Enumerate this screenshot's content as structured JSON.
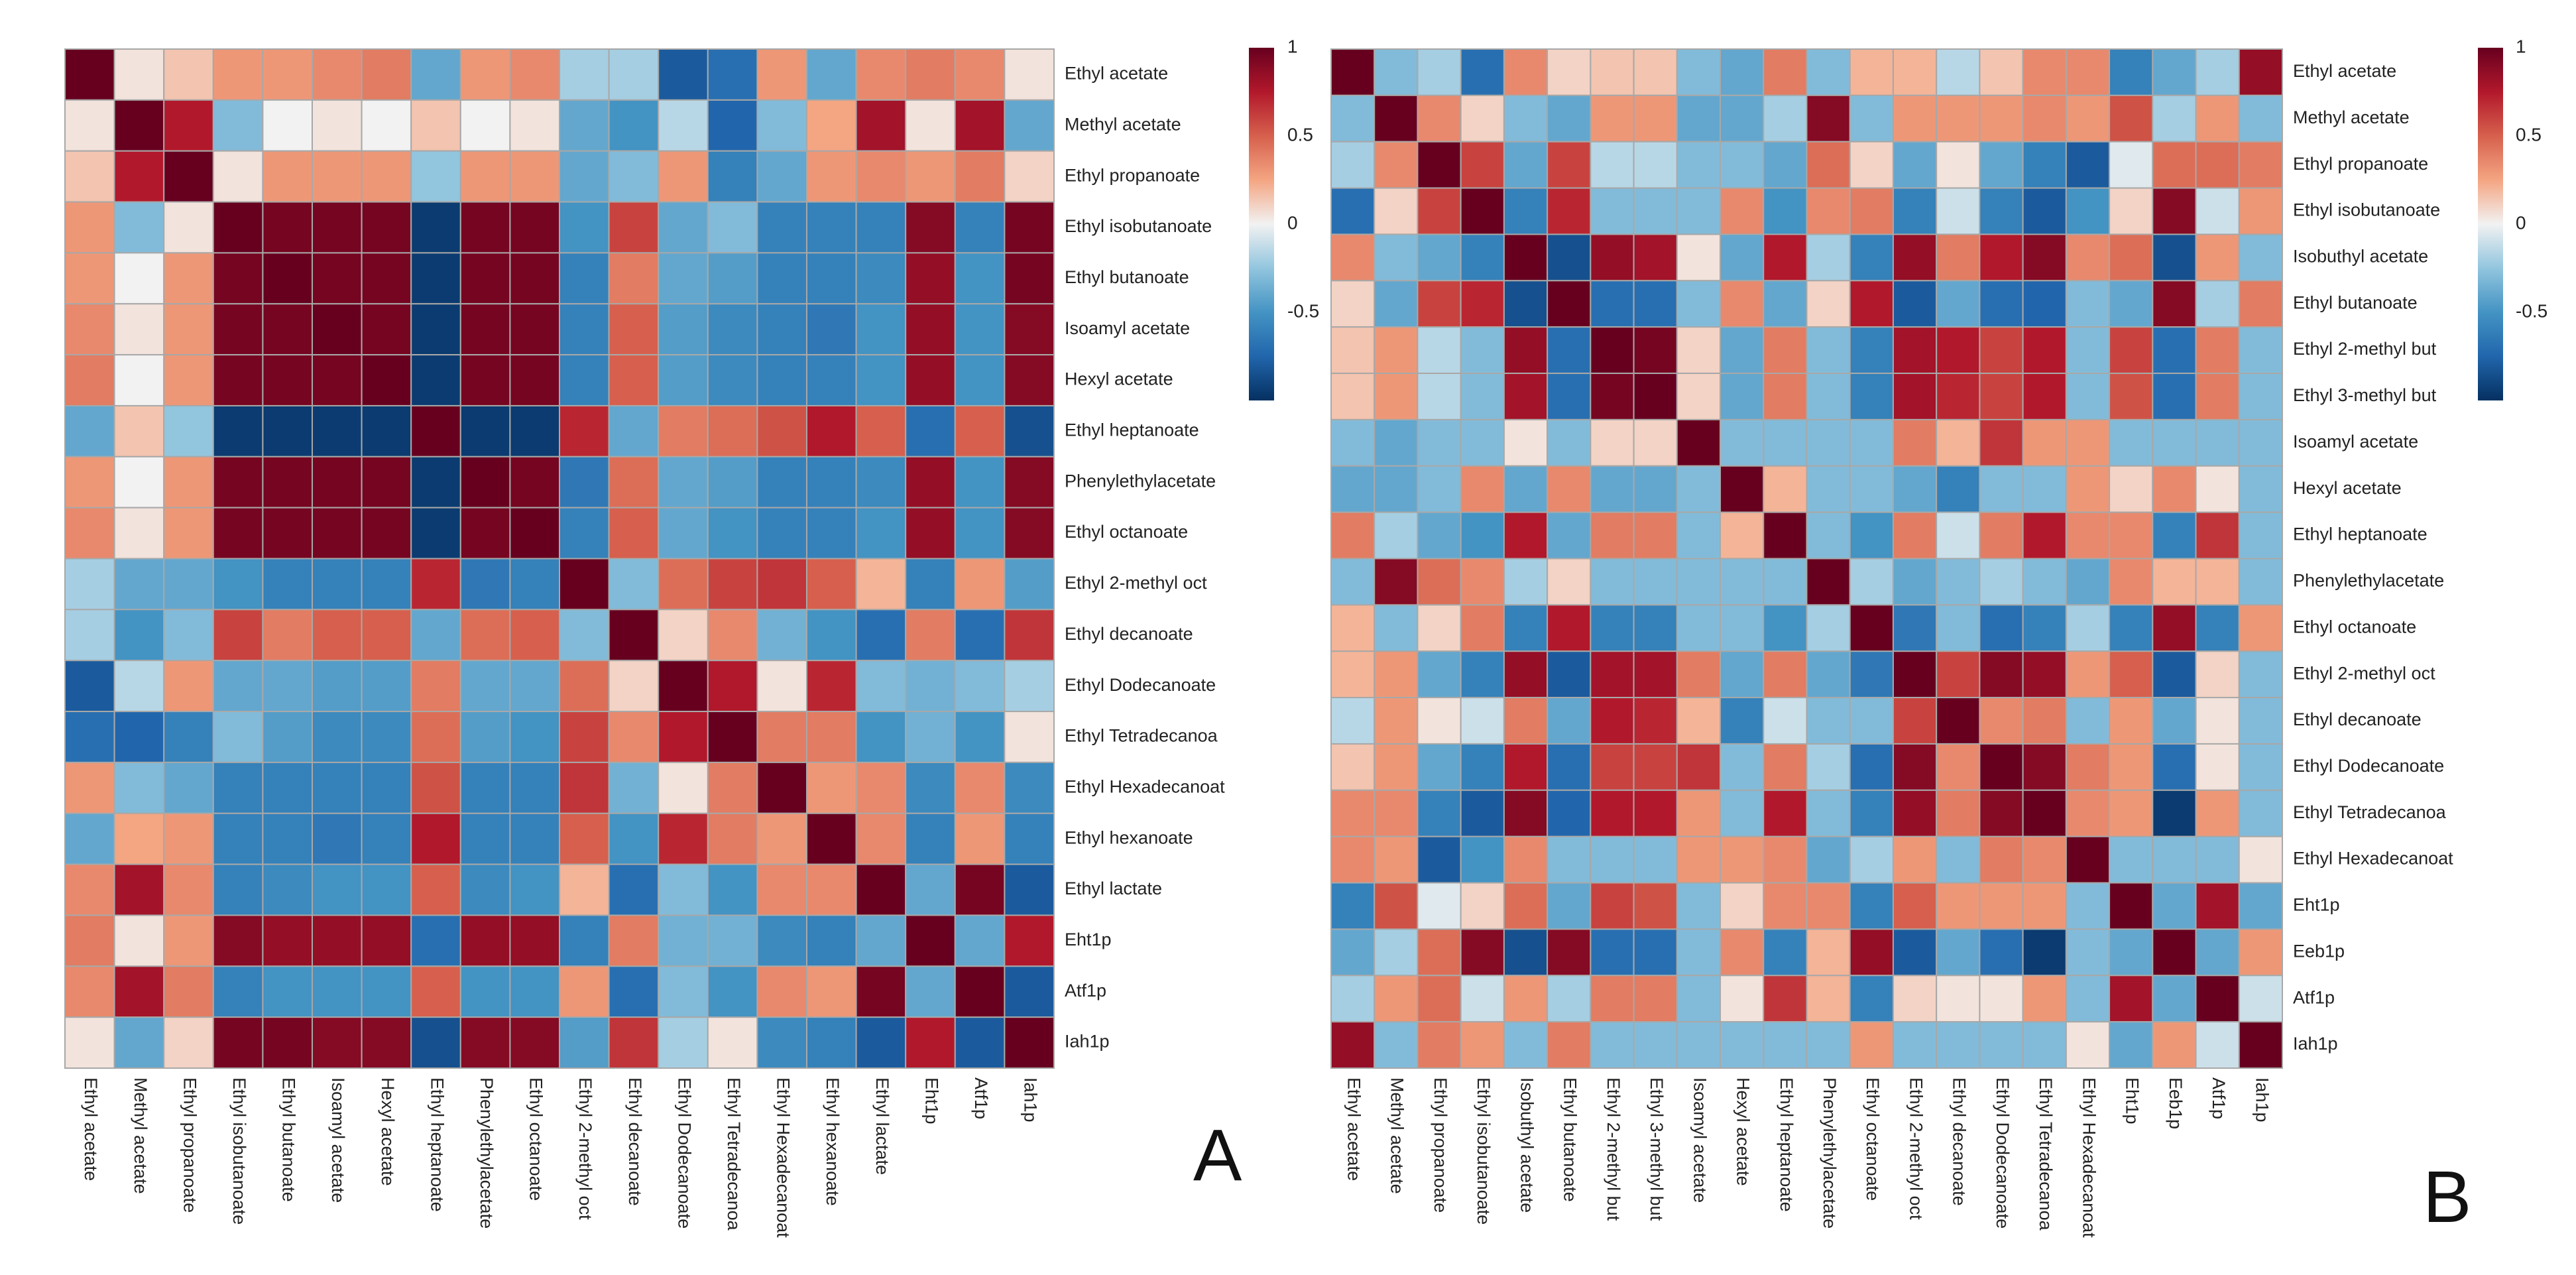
{
  "figure": {
    "panel_a_letter": "A",
    "panel_b_letter": "B"
  },
  "colors": {
    "neg": "#053061",
    "mid": "#f2f2f2",
    "pos": "#67001f",
    "grid": "#a8a8a8"
  },
  "chart_data": [
    {
      "type": "heatmap",
      "panel": "A",
      "title": "",
      "row_labels": [
        "Ethyl acetate",
        "Methyl acetate",
        "Ethyl propanoate",
        "Ethyl isobutanoate",
        "Ethyl butanoate",
        "Isoamyl acetate",
        "Hexyl acetate",
        "Ethyl heptanoate",
        "Phenylethylacetate",
        "Ethyl octanoate",
        "Ethyl 2-methyl oct",
        "Ethyl decanoate",
        "Ethyl Dodecanoate",
        "Ethyl Tetradecanoa",
        "Ethyl Hexadecanoat",
        "Ethyl hexanoate",
        "Ethyl lactate",
        "Eht1p",
        "Atf1p",
        "Iah1p"
      ],
      "col_labels": [
        "Ethyl acetate",
        "Methyl acetate",
        "Ethyl propanoate",
        "Ethyl isobutanoate",
        "Ethyl butanoate",
        "Isoamyl acetate",
        "Hexyl acetate",
        "Ethyl heptanoate",
        "Phenylethylacetate",
        "Ethyl octanoate",
        "Ethyl 2-methyl oct",
        "Ethyl decanoate",
        "Ethyl Dodecanoate",
        "Ethyl Tetradecanoa",
        "Ethyl Hexadecanoat",
        "Ethyl hexanoate",
        "Ethyl lactate",
        "Eht1p",
        "Atf1p",
        "Iah1p"
      ],
      "values": [
        [
          1.0,
          0.05,
          0.15,
          0.3,
          0.3,
          0.35,
          0.4,
          -0.4,
          0.3,
          0.35,
          -0.2,
          -0.2,
          -0.8,
          -0.7,
          0.3,
          -0.4,
          0.35,
          0.4,
          0.35,
          0.05
        ],
        [
          0.05,
          1.0,
          0.75,
          -0.3,
          0.0,
          0.05,
          0.0,
          0.15,
          0.0,
          0.05,
          -0.4,
          -0.5,
          -0.15,
          -0.75,
          -0.3,
          0.25,
          0.8,
          0.05,
          0.8,
          -0.4
        ],
        [
          0.15,
          0.75,
          1.0,
          0.05,
          0.3,
          0.3,
          0.3,
          -0.25,
          0.3,
          0.3,
          -0.4,
          -0.3,
          0.3,
          -0.6,
          -0.4,
          0.3,
          0.35,
          0.3,
          0.4,
          0.1
        ],
        [
          0.3,
          -0.3,
          0.05,
          1.0,
          0.95,
          0.95,
          0.95,
          -0.95,
          0.95,
          0.95,
          -0.5,
          0.6,
          -0.4,
          -0.3,
          -0.6,
          -0.6,
          -0.6,
          0.9,
          -0.6,
          0.95
        ],
        [
          0.3,
          0.0,
          0.3,
          0.95,
          1.0,
          0.95,
          0.95,
          -0.95,
          0.95,
          0.95,
          -0.6,
          0.4,
          -0.4,
          -0.45,
          -0.6,
          -0.6,
          -0.55,
          0.85,
          -0.5,
          0.95
        ],
        [
          0.35,
          0.05,
          0.3,
          0.95,
          0.95,
          1.0,
          0.95,
          -0.95,
          0.95,
          0.95,
          -0.6,
          0.5,
          -0.45,
          -0.55,
          -0.6,
          -0.65,
          -0.5,
          0.85,
          -0.5,
          0.9
        ],
        [
          0.4,
          0.0,
          0.3,
          0.95,
          0.95,
          0.95,
          1.0,
          -0.95,
          0.95,
          0.95,
          -0.6,
          0.5,
          -0.45,
          -0.55,
          -0.6,
          -0.6,
          -0.5,
          0.85,
          -0.5,
          0.9
        ],
        [
          -0.4,
          0.15,
          -0.25,
          -0.95,
          -0.95,
          -0.95,
          -0.95,
          1.0,
          -0.95,
          -0.95,
          0.7,
          -0.4,
          0.4,
          0.45,
          0.55,
          0.75,
          0.5,
          -0.7,
          0.5,
          -0.85
        ],
        [
          0.3,
          0.0,
          0.3,
          0.95,
          0.95,
          0.95,
          0.95,
          -0.95,
          1.0,
          0.95,
          -0.65,
          0.45,
          -0.4,
          -0.45,
          -0.6,
          -0.6,
          -0.55,
          0.85,
          -0.5,
          0.9
        ],
        [
          0.35,
          0.05,
          0.3,
          0.95,
          0.95,
          0.95,
          0.95,
          -0.95,
          0.95,
          1.0,
          -0.6,
          0.5,
          -0.4,
          -0.5,
          -0.6,
          -0.6,
          -0.5,
          0.85,
          -0.5,
          0.9
        ],
        [
          -0.2,
          -0.4,
          -0.4,
          -0.5,
          -0.6,
          -0.6,
          -0.6,
          0.7,
          -0.65,
          -0.6,
          1.0,
          -0.3,
          0.45,
          0.6,
          0.65,
          0.5,
          0.2,
          -0.6,
          0.3,
          -0.45
        ],
        [
          -0.2,
          -0.5,
          -0.3,
          0.6,
          0.4,
          0.5,
          0.5,
          -0.4,
          0.45,
          0.5,
          -0.3,
          1.0,
          0.1,
          0.35,
          -0.35,
          -0.5,
          -0.7,
          0.4,
          -0.7,
          0.65
        ],
        [
          -0.8,
          -0.15,
          0.3,
          -0.4,
          -0.4,
          -0.45,
          -0.45,
          0.4,
          -0.4,
          -0.4,
          0.45,
          0.1,
          1.0,
          0.75,
          0.05,
          0.7,
          -0.3,
          -0.35,
          -0.3,
          -0.2
        ],
        [
          -0.7,
          -0.75,
          -0.6,
          -0.3,
          -0.45,
          -0.55,
          -0.55,
          0.45,
          -0.45,
          -0.5,
          0.6,
          0.35,
          0.75,
          1.0,
          0.4,
          0.4,
          -0.5,
          -0.35,
          -0.5,
          0.05
        ],
        [
          0.3,
          -0.3,
          -0.4,
          -0.6,
          -0.6,
          -0.6,
          -0.6,
          0.55,
          -0.6,
          -0.6,
          0.65,
          -0.35,
          0.05,
          0.4,
          1.0,
          0.3,
          0.35,
          -0.55,
          0.35,
          -0.55
        ],
        [
          -0.4,
          0.25,
          0.3,
          -0.6,
          -0.6,
          -0.65,
          -0.6,
          0.75,
          -0.6,
          -0.6,
          0.5,
          -0.5,
          0.7,
          0.4,
          0.3,
          1.0,
          0.35,
          -0.6,
          0.3,
          -0.6
        ],
        [
          0.35,
          0.8,
          0.35,
          -0.6,
          -0.55,
          -0.5,
          -0.5,
          0.5,
          -0.55,
          -0.5,
          0.2,
          -0.7,
          -0.3,
          -0.5,
          0.35,
          0.35,
          1.0,
          -0.4,
          0.95,
          -0.8
        ],
        [
          0.4,
          0.05,
          0.3,
          0.9,
          0.85,
          0.85,
          0.85,
          -0.7,
          0.85,
          0.85,
          -0.6,
          0.4,
          -0.35,
          -0.35,
          -0.55,
          -0.6,
          -0.4,
          1.0,
          -0.4,
          0.75
        ],
        [
          0.35,
          0.8,
          0.4,
          -0.6,
          -0.5,
          -0.5,
          -0.5,
          0.5,
          -0.5,
          -0.5,
          0.3,
          -0.7,
          -0.3,
          -0.5,
          0.35,
          0.3,
          0.95,
          -0.4,
          1.0,
          -0.8
        ],
        [
          0.05,
          -0.4,
          0.1,
          0.95,
          0.95,
          0.9,
          0.9,
          -0.85,
          0.9,
          0.9,
          -0.45,
          0.65,
          -0.2,
          0.05,
          -0.55,
          -0.6,
          -0.8,
          0.75,
          -0.8,
          1.0
        ]
      ],
      "colorbar": {
        "range": [
          -1,
          1
        ],
        "ticks": [
          "1",
          "0.5",
          "0",
          "-0.5"
        ],
        "tick_values": [
          1,
          0.5,
          0,
          -0.5
        ],
        "colormap": "RdBu_r"
      }
    },
    {
      "type": "heatmap",
      "panel": "B",
      "title": "",
      "row_labels": [
        "Ethyl acetate",
        "Methyl acetate",
        "Ethyl propanoate",
        "Ethyl isobutanoate",
        "Isobuthyl acetate",
        "Ethyl butanoate",
        "Ethyl 2-methyl but",
        "Ethyl 3-methyl but",
        "Isoamyl acetate",
        "Hexyl acetate",
        "Ethyl heptanoate",
        "Phenylethylacetate",
        "Ethyl octanoate",
        "Ethyl 2-methyl oct",
        "Ethyl decanoate",
        "Ethyl Dodecanoate",
        "Ethyl Tetradecanoa",
        "Ethyl Hexadecanoat",
        "Eht1p",
        "Eeb1p",
        "Atf1p",
        "Iah1p"
      ],
      "col_labels": [
        "Ethyl acetate",
        "Methyl acetate",
        "Ethyl propanoate",
        "Ethyl isobutanoate",
        "Isobuthyl acetate",
        "Ethyl butanoate",
        "Ethyl 2-methyl but",
        "Ethyl 3-methyl but",
        "Isoamyl acetate",
        "Hexyl acetate",
        "Ethyl heptanoate",
        "Phenylethylacetate",
        "Ethyl octanoate",
        "Ethyl 2-methyl oct",
        "Ethyl decanoate",
        "Ethyl Dodecanoate",
        "Ethyl Tetradecanoa",
        "Ethyl Hexadecanoat",
        "Eht1p",
        "Eeb1p",
        "Atf1p",
        "Iah1p"
      ],
      "values": [
        [
          1.0,
          -0.3,
          -0.2,
          -0.7,
          0.35,
          0.1,
          0.15,
          0.15,
          -0.3,
          -0.4,
          0.4,
          -0.3,
          0.2,
          0.2,
          -0.15,
          0.15,
          0.35,
          0.35,
          -0.6,
          -0.4,
          -0.2,
          0.85
        ],
        [
          -0.3,
          1.0,
          0.35,
          0.1,
          -0.3,
          -0.4,
          0.3,
          0.3,
          -0.4,
          -0.4,
          -0.2,
          0.9,
          -0.3,
          0.3,
          0.3,
          0.3,
          0.35,
          0.3,
          0.55,
          -0.2,
          0.3,
          -0.3
        ],
        [
          -0.2,
          0.35,
          1.0,
          0.6,
          -0.4,
          0.6,
          -0.15,
          -0.15,
          -0.3,
          -0.3,
          -0.4,
          0.45,
          0.1,
          -0.4,
          0.05,
          -0.4,
          -0.6,
          -0.8,
          -0.05,
          0.45,
          0.45,
          0.4
        ],
        [
          -0.7,
          0.1,
          0.6,
          1.0,
          -0.6,
          0.7,
          -0.3,
          -0.3,
          -0.3,
          0.35,
          -0.5,
          0.35,
          0.4,
          -0.6,
          -0.1,
          -0.6,
          -0.8,
          -0.5,
          0.1,
          0.9,
          -0.1,
          0.3
        ],
        [
          0.35,
          -0.3,
          -0.4,
          -0.6,
          1.0,
          -0.85,
          0.85,
          0.8,
          0.05,
          -0.4,
          0.75,
          -0.2,
          -0.6,
          0.85,
          0.4,
          0.75,
          0.9,
          0.35,
          0.45,
          -0.85,
          0.3,
          -0.3
        ],
        [
          0.1,
          -0.4,
          0.6,
          0.7,
          -0.85,
          1.0,
          -0.7,
          -0.7,
          -0.3,
          0.35,
          -0.4,
          0.1,
          0.75,
          -0.8,
          -0.4,
          -0.7,
          -0.75,
          -0.3,
          -0.4,
          0.9,
          -0.2,
          0.4
        ],
        [
          0.15,
          0.3,
          -0.15,
          -0.3,
          0.85,
          -0.7,
          1.0,
          0.95,
          0.1,
          -0.4,
          0.4,
          -0.3,
          -0.6,
          0.8,
          0.75,
          0.6,
          0.75,
          -0.3,
          0.6,
          -0.7,
          0.4,
          -0.3
        ],
        [
          0.15,
          0.3,
          -0.15,
          -0.3,
          0.8,
          -0.7,
          0.95,
          1.0,
          0.1,
          -0.4,
          0.4,
          -0.3,
          -0.6,
          0.8,
          0.7,
          0.6,
          0.75,
          -0.3,
          0.55,
          -0.7,
          0.4,
          -0.3
        ],
        [
          -0.3,
          -0.4,
          -0.3,
          -0.3,
          0.05,
          -0.3,
          0.1,
          0.1,
          1.0,
          -0.3,
          -0.3,
          -0.3,
          -0.3,
          0.4,
          0.2,
          0.65,
          0.3,
          0.3,
          -0.3,
          -0.3,
          -0.3,
          -0.3
        ],
        [
          -0.4,
          -0.4,
          -0.3,
          0.35,
          -0.4,
          0.35,
          -0.4,
          -0.4,
          -0.3,
          1.0,
          0.2,
          -0.3,
          -0.3,
          -0.4,
          -0.6,
          -0.3,
          -0.3,
          0.3,
          0.1,
          0.35,
          0.05,
          -0.3
        ],
        [
          0.4,
          -0.2,
          -0.4,
          -0.5,
          0.75,
          -0.4,
          0.4,
          0.4,
          -0.3,
          0.2,
          1.0,
          -0.3,
          -0.5,
          0.4,
          -0.1,
          0.4,
          0.75,
          0.35,
          0.35,
          -0.6,
          0.65,
          -0.3
        ],
        [
          -0.3,
          0.9,
          0.45,
          0.35,
          -0.2,
          0.1,
          -0.3,
          -0.3,
          -0.3,
          -0.3,
          -0.3,
          1.0,
          -0.2,
          -0.4,
          -0.3,
          -0.2,
          -0.3,
          -0.4,
          0.35,
          0.2,
          0.2,
          -0.3
        ],
        [
          0.2,
          -0.3,
          0.1,
          0.4,
          -0.6,
          0.75,
          -0.6,
          -0.6,
          -0.3,
          -0.3,
          -0.5,
          -0.2,
          1.0,
          -0.65,
          -0.3,
          -0.7,
          -0.6,
          -0.2,
          -0.6,
          0.85,
          -0.6,
          0.3
        ],
        [
          0.2,
          0.3,
          -0.4,
          -0.6,
          0.85,
          -0.8,
          0.8,
          0.8,
          0.4,
          -0.4,
          0.4,
          -0.4,
          -0.65,
          1.0,
          0.6,
          0.9,
          0.85,
          0.3,
          0.5,
          -0.8,
          0.1,
          -0.3
        ],
        [
          -0.15,
          0.3,
          0.05,
          -0.1,
          0.4,
          -0.4,
          0.75,
          0.7,
          0.2,
          -0.6,
          -0.1,
          -0.3,
          -0.3,
          0.6,
          1.0,
          0.35,
          0.4,
          -0.3,
          0.3,
          -0.4,
          0.05,
          -0.3
        ],
        [
          0.15,
          0.3,
          -0.4,
          -0.6,
          0.75,
          -0.7,
          0.6,
          0.6,
          0.65,
          -0.3,
          0.4,
          -0.2,
          -0.7,
          0.9,
          0.35,
          1.0,
          0.9,
          0.4,
          0.3,
          -0.7,
          0.05,
          -0.3
        ],
        [
          0.35,
          0.35,
          -0.6,
          -0.8,
          0.9,
          -0.75,
          0.75,
          0.75,
          0.3,
          -0.3,
          0.75,
          -0.3,
          -0.6,
          0.85,
          0.4,
          0.9,
          1.0,
          0.35,
          0.3,
          -0.95,
          0.3,
          -0.3
        ],
        [
          0.35,
          0.3,
          -0.8,
          -0.5,
          0.35,
          -0.3,
          -0.3,
          -0.3,
          0.3,
          0.3,
          0.35,
          -0.4,
          -0.2,
          0.3,
          -0.3,
          0.4,
          0.35,
          1.0,
          -0.3,
          -0.3,
          -0.3,
          0.05
        ],
        [
          -0.6,
          0.55,
          -0.05,
          0.1,
          0.45,
          -0.4,
          0.6,
          0.55,
          -0.3,
          0.1,
          0.35,
          0.35,
          -0.6,
          0.5,
          0.3,
          0.3,
          0.3,
          -0.3,
          1.0,
          -0.4,
          0.8,
          -0.4
        ],
        [
          -0.4,
          -0.2,
          0.45,
          0.9,
          -0.85,
          0.9,
          -0.7,
          -0.7,
          -0.3,
          0.35,
          -0.6,
          0.2,
          0.85,
          -0.8,
          -0.4,
          -0.7,
          -0.95,
          -0.3,
          -0.4,
          1.0,
          -0.4,
          0.3
        ],
        [
          -0.2,
          0.3,
          0.45,
          -0.1,
          0.3,
          -0.2,
          0.4,
          0.4,
          -0.3,
          0.05,
          0.65,
          0.2,
          -0.6,
          0.1,
          0.05,
          0.05,
          0.3,
          -0.3,
          0.8,
          -0.4,
          1.0,
          -0.1
        ],
        [
          0.85,
          -0.3,
          0.4,
          0.3,
          -0.3,
          0.4,
          -0.3,
          -0.3,
          -0.3,
          -0.3,
          -0.3,
          -0.3,
          0.3,
          -0.3,
          -0.3,
          -0.3,
          -0.3,
          0.05,
          -0.4,
          0.3,
          -0.1,
          1.0
        ]
      ],
      "colorbar": {
        "range": [
          -1,
          1
        ],
        "ticks": [
          "1",
          "0.5",
          "0",
          "-0.5"
        ],
        "tick_values": [
          1,
          0.5,
          0,
          -0.5
        ],
        "colormap": "RdBu_r"
      }
    }
  ]
}
